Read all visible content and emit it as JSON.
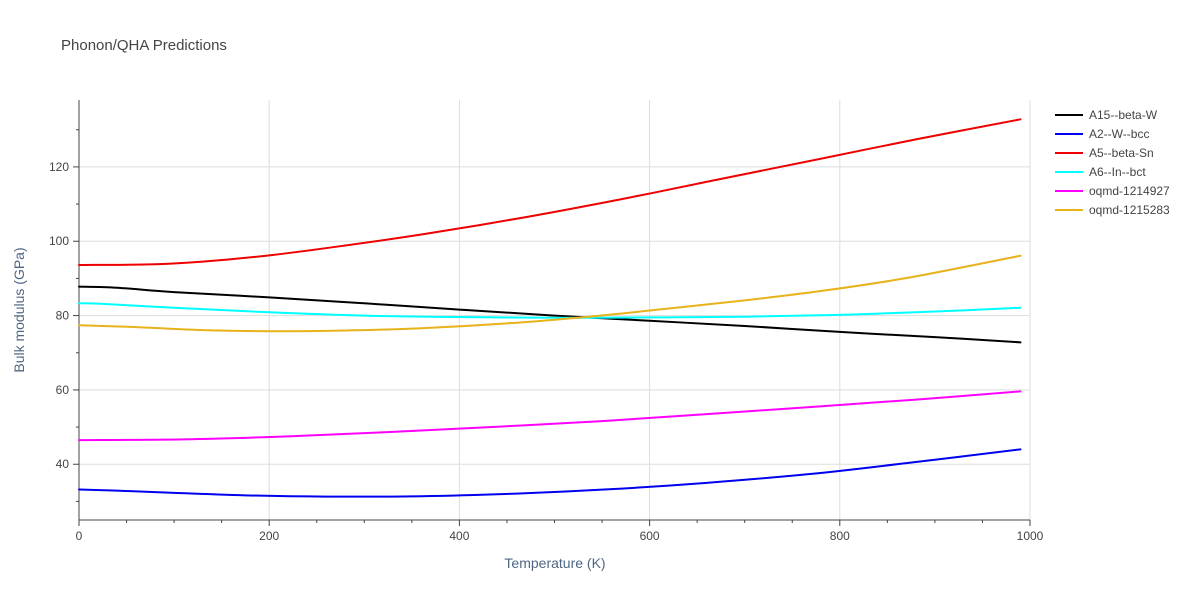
{
  "chart_data": {
    "type": "line",
    "title": "Phonon/QHA Predictions",
    "xlabel": "Temperature (K)",
    "ylabel": "Bulk modulus (GPa)",
    "xlim": [
      0,
      1000
    ],
    "ylim": [
      25,
      138
    ],
    "xticks": [
      0,
      200,
      400,
      600,
      800,
      1000
    ],
    "yticks": [
      40,
      60,
      80,
      100,
      120
    ],
    "grid": true,
    "legend_position": "top-right, outside plot",
    "series": [
      {
        "name": "A15--beta-W",
        "color": "#000000",
        "x": [
          0,
          40,
          100,
          200,
          300,
          400,
          500,
          600,
          700,
          800,
          900,
          990
        ],
        "y": [
          87.8,
          87.5,
          86.3,
          84.9,
          83.3,
          81.6,
          80.0,
          78.6,
          77.2,
          75.6,
          74.2,
          72.8
        ]
      },
      {
        "name": "A2--W--bcc",
        "color": "#0000ee",
        "x": [
          0,
          40,
          100,
          180,
          260,
          360,
          460,
          560,
          660,
          770,
          870,
          990
        ],
        "y": [
          33.2,
          32.9,
          32.3,
          31.6,
          31.3,
          31.4,
          32.1,
          33.3,
          35.0,
          37.4,
          40.3,
          44.0
        ]
      },
      {
        "name": "A5--beta-Sn",
        "color": "#ee0000",
        "x": [
          0,
          80,
          130,
          200,
          270,
          360,
          470,
          570,
          670,
          780,
          880,
          990
        ],
        "y": [
          93.6,
          93.8,
          94.5,
          96.2,
          98.5,
          101.8,
          106.5,
          111.3,
          116.5,
          122.2,
          127.4,
          132.8
        ]
      },
      {
        "name": "A6--In--bct",
        "color": "#00ffff",
        "x": [
          0,
          20,
          100,
          200,
          300,
          400,
          500,
          600,
          700,
          800,
          900,
          990
        ],
        "y": [
          83.3,
          83.2,
          82.1,
          80.9,
          80.0,
          79.6,
          79.4,
          79.5,
          79.7,
          80.2,
          81.1,
          82.1
        ]
      },
      {
        "name": "oqmd-1214927",
        "color": "#ff00ff",
        "x": [
          0,
          110,
          220,
          330,
          440,
          550,
          660,
          770,
          880,
          990
        ],
        "y": [
          46.5,
          46.7,
          47.5,
          48.7,
          50.1,
          51.6,
          53.5,
          55.4,
          57.4,
          59.6
        ]
      },
      {
        "name": "oqmd-1215283",
        "color": "#e8b21a",
        "x": [
          0,
          60,
          130,
          200,
          280,
          360,
          450,
          540,
          620,
          700,
          780,
          870,
          990
        ],
        "y": [
          77.4,
          76.9,
          76.1,
          75.8,
          76.0,
          76.6,
          77.9,
          79.8,
          81.9,
          84.1,
          86.6,
          90.1,
          96.1
        ]
      }
    ]
  }
}
